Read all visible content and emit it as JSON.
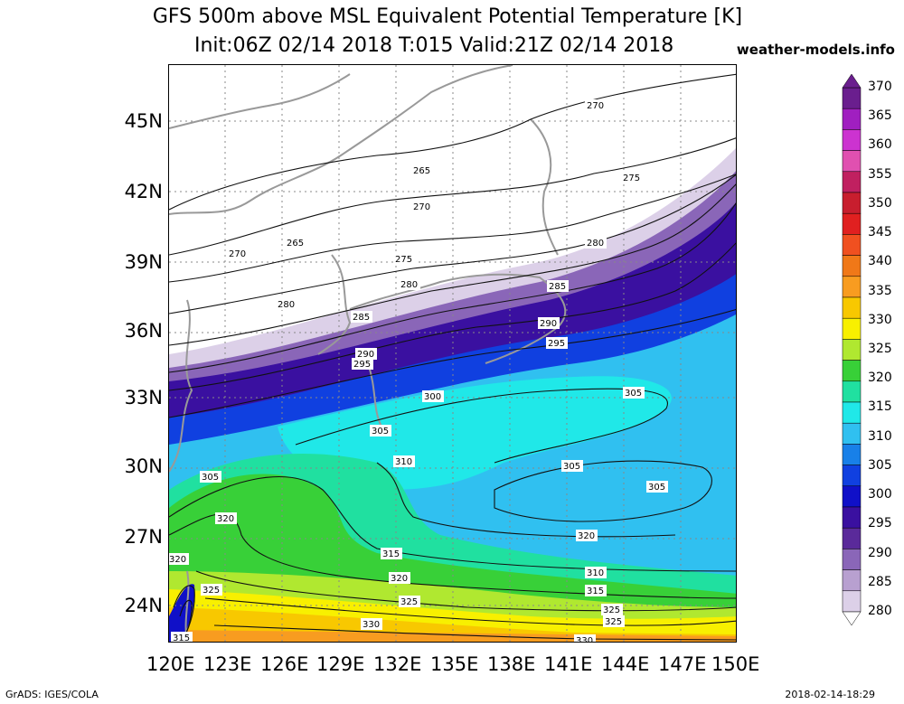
{
  "title": {
    "line1": "GFS 500m above MSL Equivalent Potential Temperature [K]",
    "line2": "Init:06Z 02/14 2018 T:015 Valid:21Z 02/14 2018",
    "site": "weather-models.info"
  },
  "axes": {
    "lat_labels": [
      "45N",
      "42N",
      "39N",
      "36N",
      "33N",
      "30N",
      "27N",
      "24N"
    ],
    "lon_labels": [
      "120E",
      "123E",
      "126E",
      "129E",
      "132E",
      "135E",
      "138E",
      "141E",
      "144E",
      "147E",
      "150E"
    ]
  },
  "colorbar": {
    "labels": [
      "370",
      "365",
      "360",
      "355",
      "350",
      "345",
      "340",
      "335",
      "330",
      "325",
      "320",
      "315",
      "310",
      "305",
      "300",
      "295",
      "290",
      "285",
      "280"
    ],
    "colors": [
      "#6a1e8e",
      "#a01fc0",
      "#cc33d0",
      "#e050b0",
      "#c02060",
      "#c81e2e",
      "#e02020",
      "#f05020",
      "#f07818",
      "#f89c20",
      "#f8c800",
      "#f8f000",
      "#b0e830",
      "#38d038",
      "#20e0a0",
      "#20e8e8",
      "#30c0f0",
      "#1880e8",
      "#1040e0",
      "#1010c8",
      "#3a10a0",
      "#5a2a9a",
      "#8a66b8",
      "#b8a0d0",
      "#dcd0e8"
    ]
  },
  "contour_labels": [
    "270",
    "265",
    "275",
    "270",
    "280",
    "265",
    "270",
    "275",
    "280",
    "285",
    "280",
    "275",
    "285",
    "290",
    "295",
    "290",
    "295",
    "300",
    "305",
    "305",
    "310",
    "305",
    "305",
    "305",
    "320",
    "320",
    "315",
    "310",
    "315",
    "320",
    "320",
    "325",
    "325",
    "330",
    "330",
    "325",
    "325",
    "315"
  ],
  "footer": {
    "left": "GrADS: IGES/COLA",
    "right": "2018-02-14-18:29"
  }
}
